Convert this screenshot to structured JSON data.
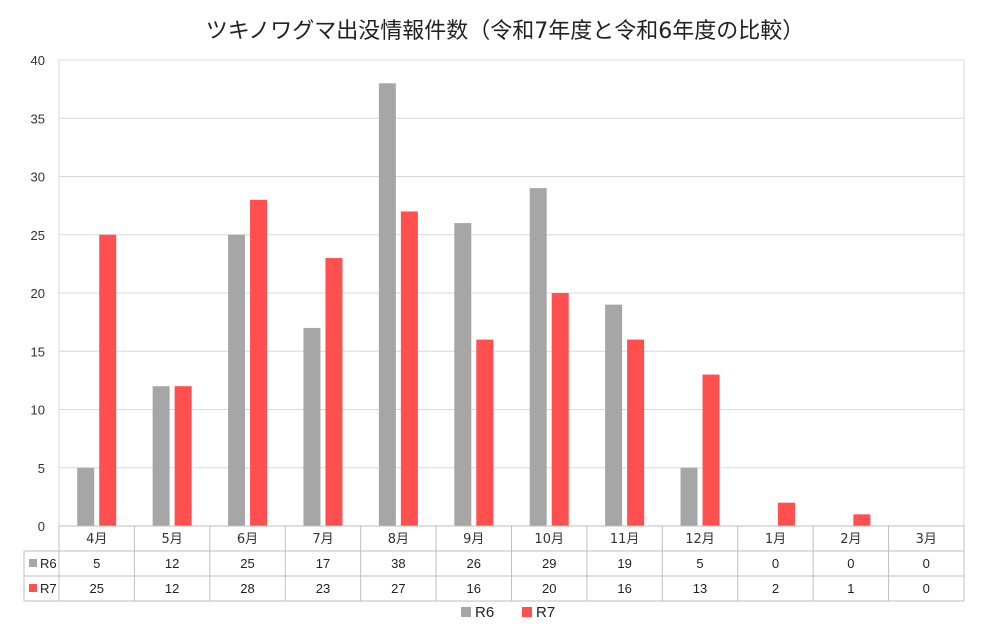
{
  "chart_data": {
    "type": "bar",
    "title": "ツキノワグマ出没情報件数（令和7年度と令和6年度の比較）",
    "categories": [
      "4月",
      "5月",
      "6月",
      "7月",
      "8月",
      "9月",
      "10月",
      "11月",
      "12月",
      "1月",
      "2月",
      "3月"
    ],
    "series": [
      {
        "name": "R6",
        "color": "#a6a6a6",
        "values": [
          5,
          12,
          25,
          17,
          38,
          26,
          29,
          19,
          5,
          0,
          0,
          0
        ]
      },
      {
        "name": "R7",
        "color": "#ff4f4f",
        "values": [
          25,
          12,
          28,
          23,
          27,
          16,
          20,
          16,
          13,
          2,
          1,
          0
        ]
      }
    ],
    "ylim": [
      0,
      40
    ],
    "yticks": [
      0,
      5,
      10,
      15,
      20,
      25,
      30,
      35,
      40
    ],
    "grid": true,
    "legend": "bottom",
    "data_table": true
  }
}
